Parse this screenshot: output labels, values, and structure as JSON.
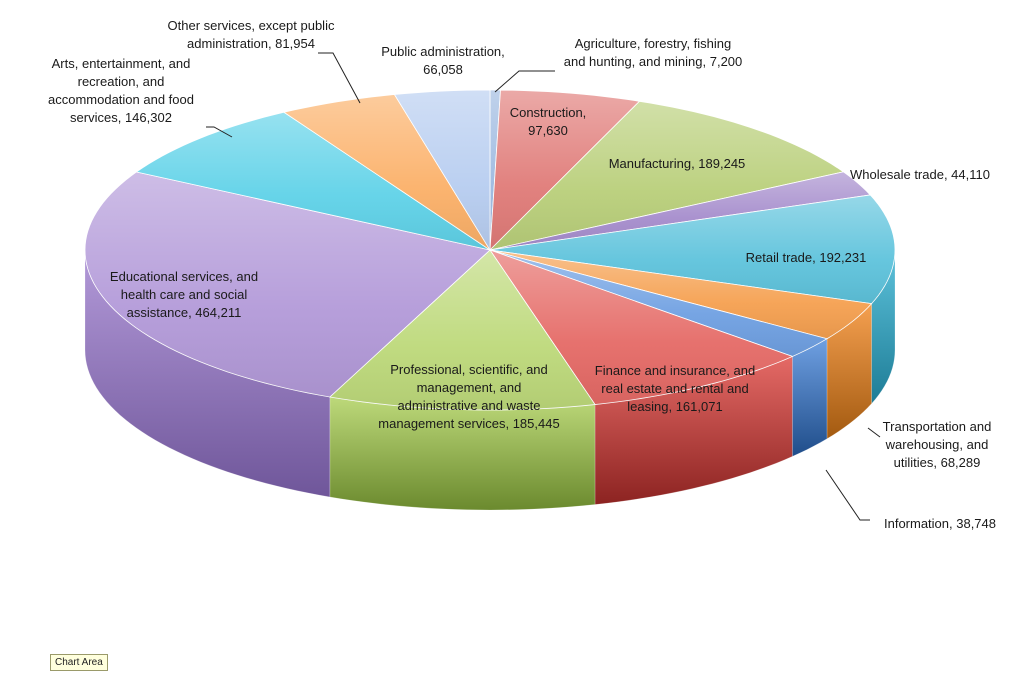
{
  "tooltip": "Chart Area",
  "chart_data": {
    "type": "pie",
    "title": "",
    "slices": [
      {
        "label": [
          "Agriculture, forestry, fishing",
          "and hunting, and mining, 7,200"
        ],
        "value": 7200,
        "color": "#9db9e0",
        "dark": "#4d6e9c"
      },
      {
        "label": [
          "Construction,",
          "97,630"
        ],
        "value": 97630,
        "color": "#e07b78",
        "dark": "#8a2a28"
      },
      {
        "label": [
          "Manufacturing, 189,245"
        ],
        "value": 189245,
        "color": "#b9cf7a",
        "dark": "#5f7a2a"
      },
      {
        "label": [
          "Wholesale trade, 44,110"
        ],
        "value": 44110,
        "color": "#a58ccc",
        "dark": "#5a3e86"
      },
      {
        "label": [
          "Retail trade, 192,231"
        ],
        "value": 192231,
        "color": "#5ec3dc",
        "dark": "#1d7c96"
      },
      {
        "label": [
          "Transportation and",
          "warehousing, and",
          "utilities, 68,289"
        ],
        "value": 68289,
        "color": "#f5a050",
        "dark": "#a35a10"
      },
      {
        "label": [
          "Information, 38,748"
        ],
        "value": 38748,
        "color": "#6fa0e2",
        "dark": "#1f4d8a"
      },
      {
        "label": [
          "Finance and insurance, and",
          "real estate and rental and",
          "leasing, 161,071"
        ],
        "value": 161071,
        "color": "#e56a66",
        "dark": "#8c2321"
      },
      {
        "label": [
          "Professional, scientific, and",
          "management, and",
          "administrative and waste",
          "management services, 185,445"
        ],
        "value": 185445,
        "color": "#bdd97a",
        "dark": "#6b8a2e"
      },
      {
        "label": [
          "Educational services, and",
          "health care and social",
          "assistance, 464,211"
        ],
        "value": 464211,
        "color": "#b39ad9",
        "dark": "#6f569a"
      },
      {
        "label": [
          "Arts, entertainment, and",
          "recreation, and",
          "accommodation and food",
          "services, 146,302"
        ],
        "value": 146302,
        "color": "#5fd2e8",
        "dark": "#1f8aa2"
      },
      {
        "label": [
          "Other services, except public",
          "administration, 81,954"
        ],
        "value": 81954,
        "color": "#fbb068",
        "dark": "#b36a1e"
      },
      {
        "label": [
          "Public administration,",
          "66,058"
        ],
        "value": 66058,
        "color": "#b7cdf0",
        "dark": "#5f7fb6"
      }
    ]
  }
}
